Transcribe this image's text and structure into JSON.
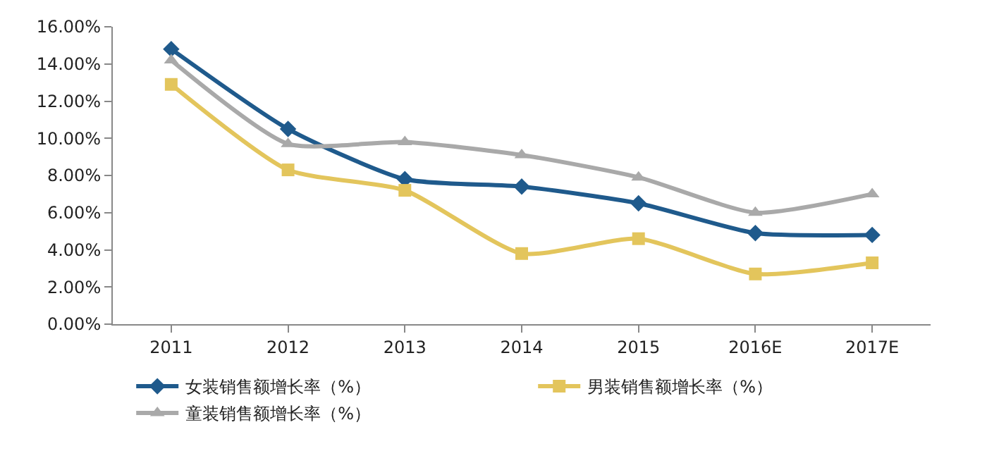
{
  "chart_data": {
    "type": "line",
    "categories": [
      "2011",
      "2012",
      "2013",
      "2014",
      "2015",
      "2016E",
      "2017E"
    ],
    "series": [
      {
        "name": "女装销售额增长率（%）",
        "color": "#1f5a8c",
        "marker": "diamond",
        "values": [
          14.8,
          10.5,
          7.8,
          7.4,
          6.5,
          4.9,
          4.8
        ]
      },
      {
        "name": "男装销售额增长率（%）",
        "color": "#e3c55c",
        "marker": "square",
        "values": [
          12.9,
          8.3,
          7.2,
          3.8,
          4.6,
          2.7,
          3.3
        ]
      },
      {
        "name": "童装销售额增长率（%）",
        "color": "#a9a9a9",
        "marker": "triangle",
        "values": [
          14.2,
          9.7,
          9.8,
          9.1,
          7.9,
          6.0,
          7.0
        ]
      }
    ],
    "ylim": [
      0,
      16
    ],
    "yticks": [
      {
        "value": 0,
        "label": "0.00%"
      },
      {
        "value": 2,
        "label": "2.00%"
      },
      {
        "value": 4,
        "label": "4.00%"
      },
      {
        "value": 6,
        "label": "6.00%"
      },
      {
        "value": 8,
        "label": "8.00%"
      },
      {
        "value": 10,
        "label": "10.00%"
      },
      {
        "value": 12,
        "label": "12.00%"
      },
      {
        "value": 14,
        "label": "14.00%"
      },
      {
        "value": 16,
        "label": "16.00%"
      }
    ],
    "legend": "bottom",
    "line_style": "solid"
  }
}
